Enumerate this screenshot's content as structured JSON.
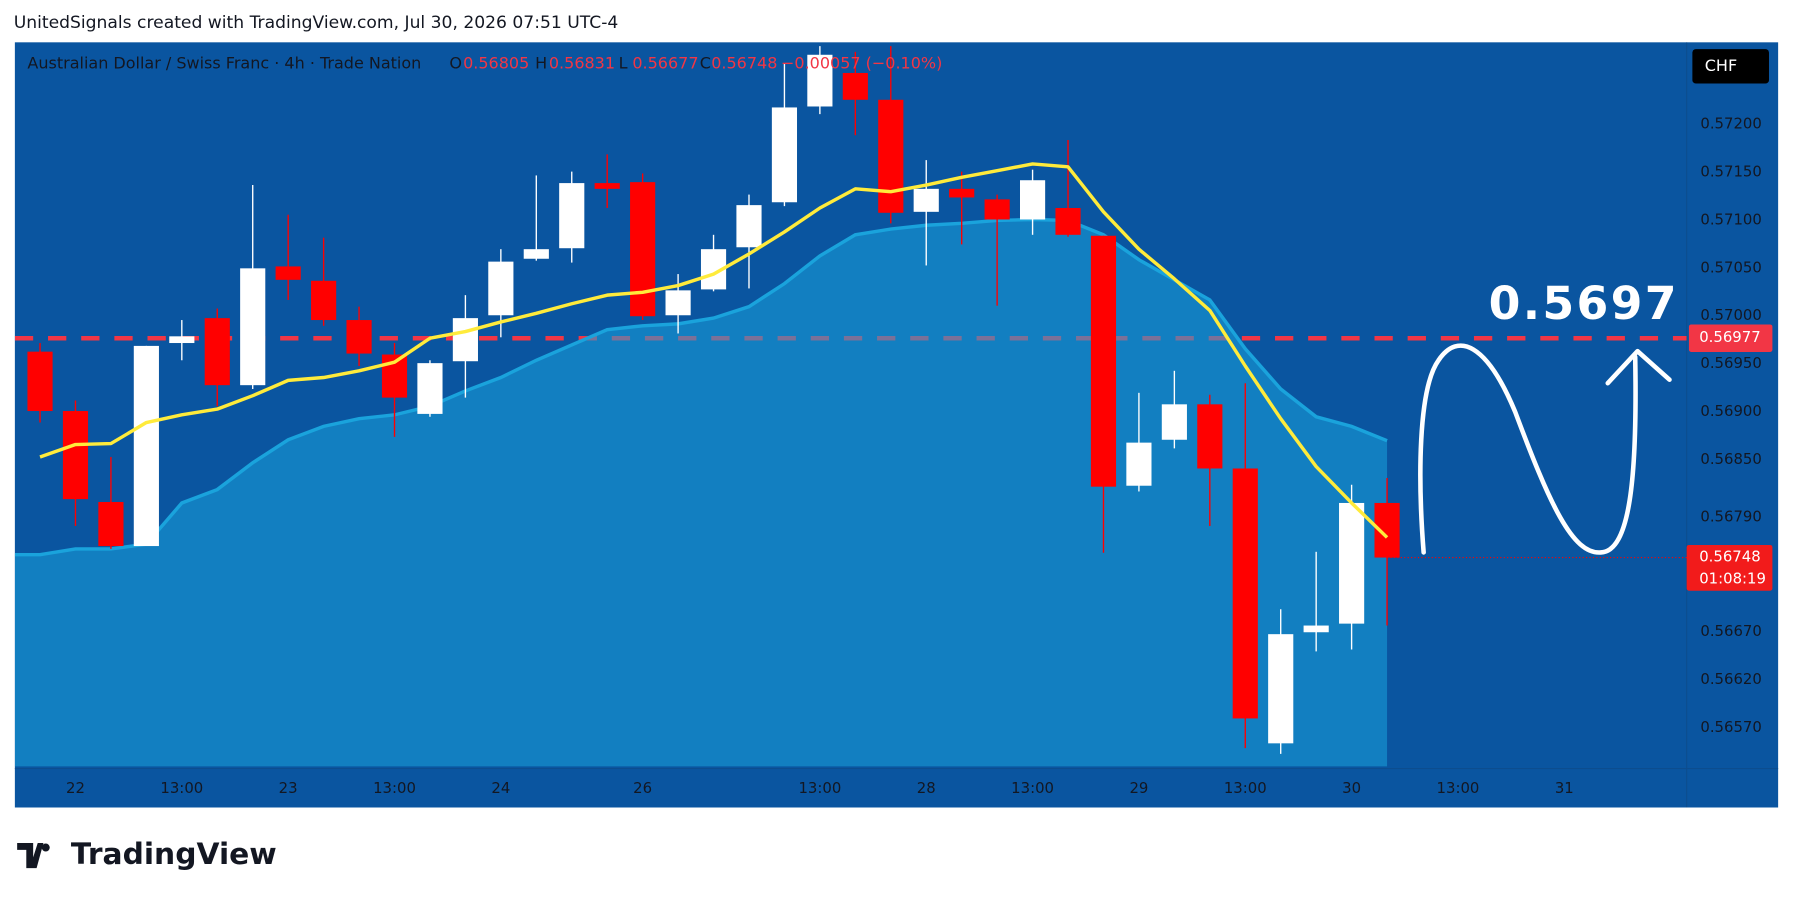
{
  "header": "UnitedSignals created with TradingView.com, Jul 30, 2026 07:51 UTC-4",
  "logo": "TradingView",
  "chart_data": {
    "type": "candlestick",
    "legend": {
      "symbol": "Australian Dollar / Swiss Franc · 4h · Trade Nation",
      "ohlc_labels": [
        "O",
        "H",
        "L",
        "C"
      ],
      "change": "−0.00057 (−0.10%)"
    },
    "currency": "CHF",
    "annotation": "0.5697",
    "countdown": "01:08:19",
    "categories": [
      null,
      "22",
      null,
      null,
      "13:00",
      null,
      null,
      "23",
      null,
      null,
      "13:00",
      null,
      null,
      "24",
      null,
      null,
      null,
      "26",
      null,
      null,
      null,
      null,
      "13:00",
      null,
      null,
      "28",
      null,
      null,
      "13:00",
      null,
      null,
      "29",
      null,
      null,
      "13:00",
      null,
      null,
      "30",
      null,
      null,
      "13:00",
      null,
      null,
      "31"
    ],
    "open": [
      0.56963,
      0.56901,
      0.56806,
      0.5676,
      0.56972,
      0.56998,
      0.56928,
      0.57052,
      0.57037,
      0.56996,
      0.5696,
      0.56898,
      0.56953,
      0.57001,
      0.5706,
      0.57071,
      0.57139,
      0.5714,
      0.57001,
      0.57028,
      0.57072,
      0.57119,
      0.57219,
      0.57254,
      0.57226,
      0.57109,
      0.57133,
      0.57122,
      0.57101,
      0.57113,
      0.57084,
      0.56823,
      0.56871,
      0.56908,
      0.56841,
      0.56554,
      0.5667,
      0.56679,
      0.56805,
      null,
      null,
      null,
      null,
      null
    ],
    "high": [
      0.56972,
      0.56912,
      0.56853,
      0.56969,
      0.56996,
      0.57008,
      0.57137,
      0.57106,
      0.57082,
      0.5701,
      0.56972,
      0.56954,
      0.57022,
      0.5707,
      0.57147,
      0.57151,
      0.57169,
      0.57149,
      0.57044,
      0.57085,
      0.57127,
      0.57264,
      0.57282,
      0.57276,
      0.57282,
      0.57163,
      0.57151,
      0.57127,
      0.57153,
      0.57184,
      0.57084,
      0.5692,
      0.56943,
      0.56918,
      0.5693,
      0.56694,
      0.56754,
      0.56824,
      0.56831,
      null,
      null,
      null,
      null,
      null
    ],
    "low": [
      0.56889,
      0.56781,
      0.56757,
      0.5676,
      0.56954,
      0.56906,
      0.56924,
      0.57017,
      0.5699,
      0.56948,
      0.56874,
      0.56895,
      0.56915,
      0.56978,
      0.57058,
      0.57056,
      0.57113,
      0.56996,
      0.56982,
      0.57026,
      0.57029,
      0.57115,
      0.57211,
      0.57189,
      0.57097,
      0.57053,
      0.57075,
      0.57011,
      0.57085,
      0.57083,
      0.56753,
      0.56817,
      0.56862,
      0.56781,
      0.56549,
      0.56543,
      0.5665,
      0.56652,
      0.56677,
      null,
      null,
      null,
      null,
      null
    ],
    "close": [
      0.56901,
      0.56809,
      0.5676,
      0.56969,
      0.56979,
      0.56928,
      0.5705,
      0.57038,
      0.56996,
      0.56961,
      0.56915,
      0.56951,
      0.56998,
      0.57057,
      0.5707,
      0.57139,
      0.57133,
      0.57,
      0.57027,
      0.5707,
      0.57116,
      0.57218,
      0.57273,
      0.57226,
      0.57108,
      0.57133,
      0.57124,
      0.57101,
      0.57142,
      0.57085,
      0.56822,
      0.56868,
      0.56908,
      0.56841,
      0.5658,
      0.56668,
      0.56677,
      0.56805,
      0.56748,
      null,
      null,
      null,
      null,
      null
    ],
    "up_color": "#ffffff",
    "down_color": "#ff0000",
    "ma_line": {
      "color": "#ffeb3b",
      "values": [
        0.56853,
        0.56866,
        0.56867,
        0.56889,
        0.56897,
        0.56903,
        0.56917,
        0.56933,
        0.56936,
        0.56943,
        0.56952,
        0.56977,
        0.56984,
        0.56994,
        0.57003,
        0.57013,
        0.57022,
        0.57025,
        0.57032,
        0.57044,
        0.57065,
        0.57088,
        0.57113,
        0.57133,
        0.5713,
        0.57137,
        0.57145,
        0.57152,
        0.57159,
        0.57156,
        0.57109,
        0.5707,
        0.57039,
        0.57006,
        0.56948,
        0.56893,
        0.56843,
        0.56805,
        0.56769,
        null,
        null,
        null,
        null,
        null
      ]
    },
    "ma_area": {
      "color": "#1aa3dc",
      "values": [
        0.56751,
        0.56757,
        0.56757,
        0.56762,
        0.56805,
        0.56819,
        0.56847,
        0.56871,
        0.56885,
        0.56893,
        0.56897,
        0.56906,
        0.56922,
        0.56936,
        0.56954,
        0.5697,
        0.56986,
        0.5699,
        0.56992,
        0.56998,
        0.5701,
        0.57034,
        0.57063,
        0.57085,
        0.57091,
        0.57095,
        0.57097,
        0.571,
        0.57101,
        0.571,
        0.57085,
        0.57059,
        0.57038,
        0.57017,
        0.56966,
        0.56924,
        0.56895,
        0.56885,
        0.5687,
        null,
        null,
        null,
        null,
        null
      ]
    },
    "hline": {
      "value": 0.56977,
      "color": "#f23645"
    },
    "ylim": [
      0.5653,
      0.57286
    ],
    "yticks": [
      {
        "value": 0.572,
        "label": "0.57200"
      },
      {
        "value": 0.5715,
        "label": "0.57150"
      },
      {
        "value": 0.571,
        "label": "0.57100"
      },
      {
        "value": 0.5705,
        "label": "0.57050"
      },
      {
        "value": 0.57,
        "label": "0.57000"
      },
      {
        "value": 0.5695,
        "label": "0.56950"
      },
      {
        "value": 0.569,
        "label": "0.56900"
      },
      {
        "value": 0.5685,
        "label": "0.56850"
      },
      {
        "value": 0.5679,
        "label": "0.56790"
      },
      {
        "value": 0.5667,
        "label": "0.56670"
      },
      {
        "value": 0.5662,
        "label": "0.56620"
      },
      {
        "value": 0.5657,
        "label": "0.56570"
      }
    ]
  }
}
